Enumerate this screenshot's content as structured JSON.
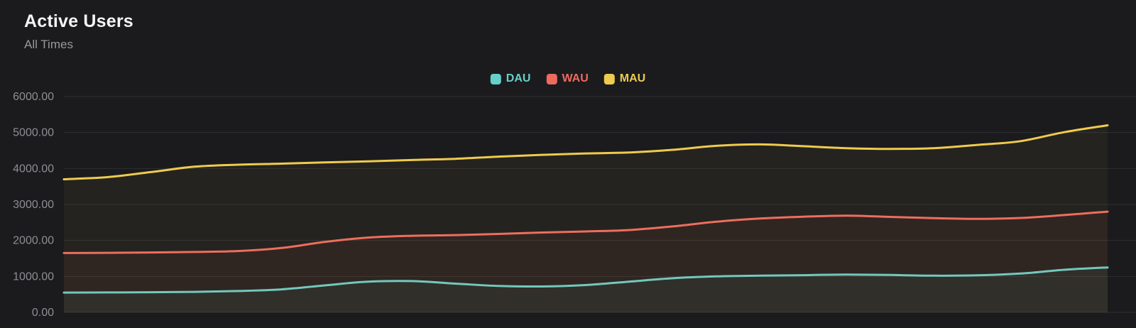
{
  "header": {
    "title": "Active Users",
    "subtitle": "All Times"
  },
  "colors": {
    "background": "#1b1b1d",
    "grid": "#2f2f31",
    "axis_text": "#8e8e93",
    "dau": "#66cfc9",
    "wau": "#ee6a5f",
    "mau": "#eecb4f"
  },
  "chart_data": {
    "type": "line",
    "title": "Active Users",
    "subtitle": "All Times",
    "xlabel": "",
    "ylabel": "",
    "ylim": [
      0,
      6000
    ],
    "grid": "horizontal",
    "legend_position": "top-center",
    "yticks": [
      {
        "value": 6000,
        "label": "6000.00"
      },
      {
        "value": 5000,
        "label": "5000.00"
      },
      {
        "value": 4000,
        "label": "4000.00"
      },
      {
        "value": 3000,
        "label": "3000.00"
      },
      {
        "value": 2000,
        "label": "2000.00"
      },
      {
        "value": 1000,
        "label": "1000.00"
      },
      {
        "value": 0,
        "label": "0.00"
      }
    ],
    "x": [
      0,
      1,
      2,
      3,
      4,
      5,
      6,
      7,
      8,
      9,
      10,
      11,
      12,
      13,
      14,
      15,
      16,
      17,
      18,
      19,
      20,
      21,
      22,
      23,
      24
    ],
    "series": [
      {
        "name": "DAU",
        "color": "#66cfc9",
        "values": [
          550,
          555,
          560,
          570,
          595,
          640,
          750,
          855,
          870,
          800,
          735,
          720,
          760,
          855,
          950,
          1000,
          1020,
          1035,
          1050,
          1040,
          1020,
          1030,
          1080,
          1185,
          1250
        ]
      },
      {
        "name": "WAU",
        "color": "#ee6a5f",
        "values": [
          1650,
          1655,
          1665,
          1680,
          1705,
          1790,
          1960,
          2080,
          2130,
          2150,
          2180,
          2220,
          2250,
          2290,
          2390,
          2520,
          2610,
          2660,
          2690,
          2655,
          2620,
          2600,
          2625,
          2705,
          2800
        ]
      },
      {
        "name": "MAU",
        "color": "#eecb4f",
        "values": [
          3700,
          3760,
          3900,
          4050,
          4105,
          4135,
          4170,
          4200,
          4235,
          4270,
          4330,
          4380,
          4420,
          4445,
          4520,
          4630,
          4670,
          4620,
          4565,
          4545,
          4565,
          4655,
          4760,
          5010,
          5200
        ]
      }
    ]
  }
}
